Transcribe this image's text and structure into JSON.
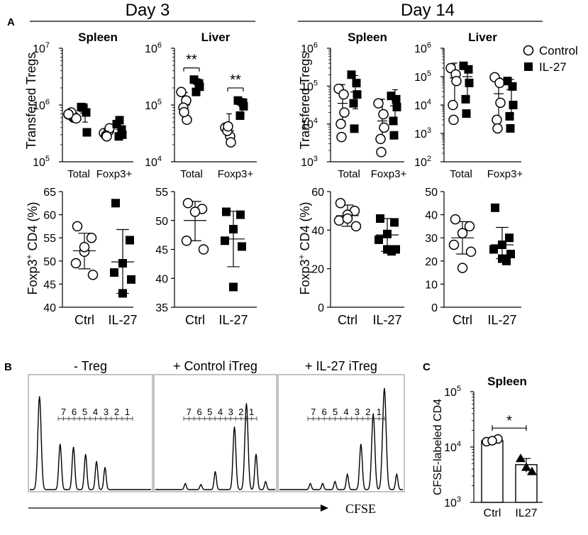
{
  "panel_labels": {
    "a": "A",
    "b": "B",
    "c": "C"
  },
  "day_headers": {
    "day3": "Day 3",
    "day14": "Day 14"
  },
  "legend": {
    "control": "Control",
    "il27": "IL-27"
  },
  "axis_titles": {
    "transferred": "Transfered Tregs",
    "foxp3_base": "Foxp3",
    "foxp3_sup": "+",
    "foxp3_rest": " CD4 (%)",
    "cfse_labeled": "CFSE-labeled CD4"
  },
  "chart_data": [
    {
      "id": "d3-spleen-count",
      "type": "scatter",
      "title": "Spleen",
      "scale": "log",
      "ylim": [
        100000,
        10000000
      ],
      "yticks": [
        {
          "base": "10",
          "exp": "5",
          "v": 100000
        },
        {
          "base": "10",
          "exp": "6",
          "v": 1000000
        },
        {
          "base": "10",
          "exp": "7",
          "v": 10000000
        }
      ],
      "categories": [
        "Total",
        "Foxp3+"
      ],
      "series": [
        {
          "name": "Control",
          "points": [
            [
              680000,
              600000,
              620000,
              720000,
              740000,
              580000,
              690000
            ],
            [
              320000,
              350000,
              390000,
              290000,
              280000
            ]
          ],
          "mean": [
            660000,
            330000
          ],
          "sd": [
            [
              600000,
              740000
            ],
            [
              280000,
              390000
            ]
          ]
        },
        {
          "name": "IL-27",
          "points": [
            [
              920000,
              740000,
              330000,
              900000
            ],
            [
              460000,
              370000,
              300000,
              280000,
              540000
            ]
          ],
          "mean": [
            720000,
            370000
          ],
          "sd": [
            [
              500000,
              950000
            ],
            [
              270000,
              520000
            ]
          ]
        }
      ],
      "sig": []
    },
    {
      "id": "d3-liver-count",
      "type": "scatter",
      "title": "Liver",
      "scale": "log",
      "ylim": [
        10000,
        1000000
      ],
      "yticks": [
        {
          "base": "10",
          "exp": "4",
          "v": 10000
        },
        {
          "base": "10",
          "exp": "5",
          "v": 100000
        },
        {
          "base": "10",
          "exp": "6",
          "v": 1000000
        }
      ],
      "categories": [
        "Total",
        "Foxp3+"
      ],
      "series": [
        {
          "name": "Control",
          "points": [
            [
              170000,
              120000,
              55000,
              90000,
              75000
            ],
            [
              40000,
              28000,
              22000,
              35000,
              42000
            ]
          ],
          "mean": [
            100000,
            35000
          ],
          "sd": [
            [
              60000,
              165000
            ],
            [
              22000,
              70000
            ]
          ]
        },
        {
          "name": "IL-27",
          "points": [
            [
              280000,
              240000,
              210000,
              170000
            ],
            [
              120000,
              110000,
              95000,
              65000
            ]
          ],
          "mean": [
            230000,
            100000
          ],
          "sd": [
            [
              180000,
              290000
            ],
            [
              70000,
              130000
            ]
          ]
        }
      ],
      "sig": [
        {
          "text": "**",
          "cat": 0,
          "y": 450000
        },
        {
          "text": "**",
          "cat": 1,
          "y": 200000
        }
      ]
    },
    {
      "id": "d14-spleen-count",
      "type": "scatter",
      "title": "Spleen",
      "scale": "log",
      "ylim": [
        1000,
        1000000
      ],
      "yticks": [
        {
          "base": "10",
          "exp": "3",
          "v": 1000
        },
        {
          "base": "10",
          "exp": "4",
          "v": 10000
        },
        {
          "base": "10",
          "exp": "5",
          "v": 100000
        },
        {
          "base": "10",
          "exp": "6",
          "v": 1000000
        }
      ],
      "categories": [
        "Total",
        "Foxp3+"
      ],
      "series": [
        {
          "name": "Control",
          "points": [
            [
              85000,
              60000,
              20000,
              10000,
              4500
            ],
            [
              35000,
              18000,
              8000,
              4000,
              1800
            ]
          ],
          "mean": [
            35000,
            12000
          ],
          "sd": [
            [
              12000,
              110000
            ],
            [
              3500,
              45000
            ]
          ]
        },
        {
          "name": "IL-27",
          "points": [
            [
              200000,
              120000,
              60000,
              35000,
              7500
            ],
            [
              55000,
              45000,
              28000,
              12000,
              5000
            ]
          ],
          "mean": [
            70000,
            30000
          ],
          "sd": [
            [
              25000,
              190000
            ],
            [
              10000,
              80000
            ]
          ]
        }
      ],
      "sig": []
    },
    {
      "id": "d14-liver-count",
      "type": "scatter",
      "title": "Liver",
      "scale": "log",
      "ylim": [
        100,
        1000000
      ],
      "yticks": [
        {
          "base": "10",
          "exp": "2",
          "v": 100
        },
        {
          "base": "10",
          "exp": "3",
          "v": 1000
        },
        {
          "base": "10",
          "exp": "4",
          "v": 10000
        },
        {
          "base": "10",
          "exp": "5",
          "v": 100000
        },
        {
          "base": "10",
          "exp": "6",
          "v": 1000000
        }
      ],
      "categories": [
        "Total",
        "Foxp3+"
      ],
      "series": [
        {
          "name": "Control",
          "points": [
            [
              200000,
              120000,
              70000,
              10000,
              3000
            ],
            [
              95000,
              60000,
              12000,
              3000,
              1500
            ]
          ],
          "mean": [
            90000,
            25000
          ],
          "sd": [
            [
              8000,
              300000
            ],
            [
              2500,
              90000
            ]
          ]
        },
        {
          "name": "IL-27",
          "points": [
            [
              240000,
              180000,
              60000,
              16000,
              5000
            ],
            [
              70000,
              45000,
              10000,
              4000,
              1500
            ]
          ],
          "mean": [
            100000,
            35000
          ],
          "sd": [
            [
              20000,
              200000
            ],
            [
              5000,
              80000
            ]
          ]
        }
      ],
      "sig": []
    },
    {
      "id": "d3-spleen-pct",
      "type": "scatter",
      "scale": "linear",
      "ylim": [
        40,
        65
      ],
      "ytick_labels": [
        "40",
        "45",
        "50",
        "55",
        "60",
        "65"
      ],
      "ytick_values": [
        40,
        45,
        50,
        55,
        60,
        65
      ],
      "categories": [
        "Ctrl",
        "IL-27"
      ],
      "series": [
        {
          "name": "Control",
          "points": [
            [
              57.5,
              55,
              52,
              49.5,
              47,
              53
            ]
          ],
          "mean": [
            52.2
          ],
          "sd": [
            [
              48.3,
              56
            ]
          ]
        },
        {
          "name": "IL-27",
          "points": [
            [
              62.5,
              54.5,
              49.5,
              47.5,
              46,
              43
            ]
          ],
          "mean": [
            49.8
          ],
          "sd": [
            [
              43,
              56.8
            ]
          ]
        }
      ]
    },
    {
      "id": "d3-liver-pct",
      "type": "scatter",
      "scale": "linear",
      "ylim": [
        35,
        55
      ],
      "ytick_labels": [
        "35",
        "40",
        "45",
        "50",
        "55"
      ],
      "ytick_values": [
        35,
        40,
        45,
        50,
        55
      ],
      "categories": [
        "Ctrl",
        "IL-27"
      ],
      "series": [
        {
          "name": "Control",
          "points": [
            [
              53,
              52,
              51.5,
              46.5,
              45
            ]
          ],
          "mean": [
            50
          ],
          "sd": [
            [
              46.5,
              53.3
            ]
          ]
        },
        {
          "name": "IL-27",
          "points": [
            [
              51.5,
              51,
              48.5,
              46.5,
              45.5,
              38.5
            ]
          ],
          "mean": [
            46.8
          ],
          "sd": [
            [
              42,
              51.6
            ]
          ]
        }
      ]
    },
    {
      "id": "d14-spleen-pct",
      "type": "scatter",
      "scale": "linear",
      "ylim": [
        0,
        60
      ],
      "ytick_labels": [
        "0",
        "20",
        "40",
        "60"
      ],
      "ytick_values": [
        0,
        20,
        40,
        60
      ],
      "categories": [
        "Ctrl",
        "IL-27"
      ],
      "series": [
        {
          "name": "Control",
          "points": [
            [
              54,
              50,
              48,
              45,
              42,
              46
            ]
          ],
          "mean": [
            47.5
          ],
          "sd": [
            [
              42,
              53
            ]
          ]
        },
        {
          "name": "IL-27",
          "points": [
            [
              46,
              44,
              38,
              35,
              30,
              30,
              29
            ]
          ],
          "mean": [
            37.5
          ],
          "sd": [
            [
              29,
              46
            ]
          ]
        }
      ]
    },
    {
      "id": "d14-liver-pct",
      "type": "scatter",
      "scale": "linear",
      "ylim": [
        0,
        50
      ],
      "ytick_labels": [
        "0",
        "10",
        "20",
        "30",
        "40",
        "50"
      ],
      "ytick_values": [
        0,
        10,
        20,
        30,
        40,
        50
      ],
      "categories": [
        "Ctrl",
        "IL-27"
      ],
      "series": [
        {
          "name": "Control",
          "points": [
            [
              38,
              35,
              32,
              27,
              24,
              17
            ]
          ],
          "mean": [
            30
          ],
          "sd": [
            [
              23,
              37
            ]
          ]
        },
        {
          "name": "IL-27",
          "points": [
            [
              43,
              30,
              27,
              25,
              23,
              21,
              20
            ]
          ],
          "mean": [
            27
          ],
          "sd": [
            [
              21,
              34.5
            ]
          ]
        }
      ]
    },
    {
      "id": "cfse-spleen",
      "type": "bar",
      "title": "Spleen",
      "scale": "log",
      "ylim": [
        1000,
        100000
      ],
      "yticks": [
        {
          "base": "10",
          "exp": "3",
          "v": 1000
        },
        {
          "base": "10",
          "exp": "4",
          "v": 10000
        },
        {
          "base": "10",
          "exp": "5",
          "v": 100000
        }
      ],
      "categories": [
        "Ctrl",
        "IL27"
      ],
      "values": [
        13000,
        4800
      ],
      "sd": [
        [
          11500,
          14500
        ],
        [
          3500,
          6200
        ]
      ],
      "points": [
        [
          12500,
          14000,
          13000
        ],
        [
          6200,
          3600,
          4300
        ]
      ],
      "sig": {
        "text": "*",
        "y": 22000
      }
    },
    {
      "id": "cfse-histograms",
      "type": "histogram",
      "panels": [
        {
          "title": "- Treg",
          "peaks": [
            {
              "pos": 0.08,
              "h": 0.92
            },
            {
              "pos": 0.25,
              "h": 0.45
            },
            {
              "pos": 0.36,
              "h": 0.42
            },
            {
              "pos": 0.46,
              "h": 0.35
            },
            {
              "pos": 0.55,
              "h": 0.28
            },
            {
              "pos": 0.62,
              "h": 0.22
            }
          ]
        },
        {
          "title": "+ Control iTreg",
          "peaks": [
            {
              "pos": 0.25,
              "h": 0.06
            },
            {
              "pos": 0.38,
              "h": 0.05
            },
            {
              "pos": 0.5,
              "h": 0.18
            },
            {
              "pos": 0.66,
              "h": 0.62
            },
            {
              "pos": 0.76,
              "h": 0.85
            },
            {
              "pos": 0.84,
              "h": 0.35
            },
            {
              "pos": 0.92,
              "h": 0.08
            }
          ]
        },
        {
          "title": "+ IL-27 iTreg",
          "peaks": [
            {
              "pos": 0.25,
              "h": 0.06
            },
            {
              "pos": 0.35,
              "h": 0.06
            },
            {
              "pos": 0.45,
              "h": 0.08
            },
            {
              "pos": 0.55,
              "h": 0.15
            },
            {
              "pos": 0.66,
              "h": 0.45
            },
            {
              "pos": 0.76,
              "h": 0.75
            },
            {
              "pos": 0.85,
              "h": 1.0
            },
            {
              "pos": 0.95,
              "h": 0.15
            }
          ]
        }
      ],
      "gate_labels": [
        "7",
        "6",
        "5",
        "4",
        "3",
        "2",
        "1"
      ],
      "xlabel": "CFSE"
    }
  ]
}
